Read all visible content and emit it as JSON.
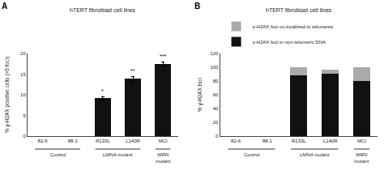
{
  "chart_data": [
    {
      "type": "bar",
      "title": "hTERT fibroblast cell lines",
      "panel_label": "A",
      "ylabel": "% γ-H2AX positive cells (>5 foci)",
      "categories": [
        "82-6",
        "88-1",
        "R133L",
        "L140R",
        "MCI"
      ],
      "values": [
        0.0,
        0.0,
        9.2,
        14.0,
        17.5
      ],
      "errors": [
        0.0,
        0.0,
        0.4,
        0.5,
        0.5
      ],
      "color": "#111111",
      "ylim": [
        0,
        20
      ],
      "yticks": [
        0,
        5,
        10,
        15,
        20
      ],
      "annotations": [
        {
          "category": "R133L",
          "text": "*"
        },
        {
          "category": "L140R",
          "text": "**"
        },
        {
          "category": "MCI",
          "text": "***"
        }
      ],
      "groups": [
        {
          "label": "Control",
          "italic": false,
          "categories": [
            "82-6",
            "88-1"
          ]
        },
        {
          "label": "LMNA mutant",
          "italic": true,
          "categories": [
            "R133L",
            "L140R"
          ]
        },
        {
          "label": "WRN\nmutant",
          "italic": true,
          "categories": [
            "MCI"
          ]
        }
      ],
      "grid": false
    },
    {
      "type": "bar",
      "title": "hTERT fibroblast cell lines",
      "panel_label": "B",
      "ylabel": "% γ-H2AX foci",
      "categories": [
        "82-6",
        "88-1",
        "R133L",
        "L140R",
        "MCI"
      ],
      "series": [
        {
          "name": "γ-H2AX foci in non-telomeric DNA",
          "color": "#111111",
          "values": [
            0.0,
            0.0,
            88.0,
            91.0,
            80.0
          ]
        },
        {
          "name": "γ-H2AX foci co-localized to telomeres",
          "color": "#aaaaaa",
          "values": [
            0.0,
            0.0,
            12.0,
            6.0,
            20.0
          ]
        }
      ],
      "stacked": true,
      "legend": "upper left",
      "ylim": [
        0,
        120
      ],
      "yticks": [
        0,
        20,
        40,
        60,
        80,
        100,
        120
      ],
      "groups": [
        {
          "label": "Control",
          "italic": false,
          "categories": [
            "82-6",
            "88-1"
          ]
        },
        {
          "label": "LMNA mutant",
          "italic": true,
          "categories": [
            "R133L",
            "L140R"
          ]
        },
        {
          "label": "WRN\nmutant",
          "italic": true,
          "categories": [
            "MCI"
          ]
        }
      ],
      "grid": false
    }
  ]
}
